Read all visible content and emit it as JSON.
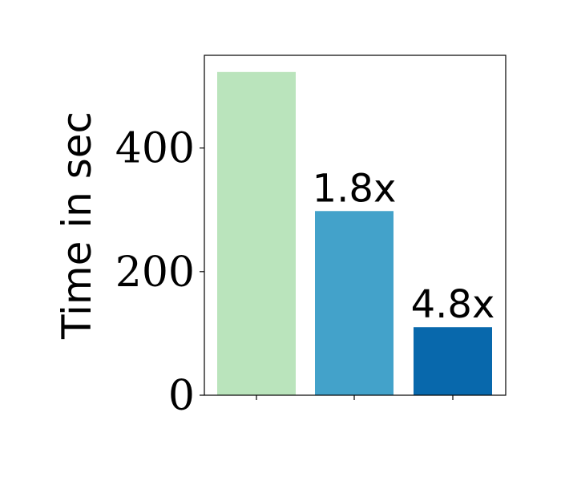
{
  "chart_data": {
    "type": "bar",
    "categories": [
      "",
      "",
      ""
    ],
    "values": [
      523,
      298,
      110
    ],
    "colors": [
      "#bae4bc",
      "#43a2ca",
      "#0868ac"
    ],
    "data_labels": [
      "",
      "1.8x",
      "4.8x"
    ],
    "yticks": [
      0,
      200,
      400
    ],
    "ytick_labels": [
      "0",
      "200",
      "400"
    ],
    "ylabel": "Time in sec",
    "xlabel": "",
    "title": "",
    "ylim": [
      0,
      550
    ],
    "grid": false,
    "legend": "none"
  }
}
